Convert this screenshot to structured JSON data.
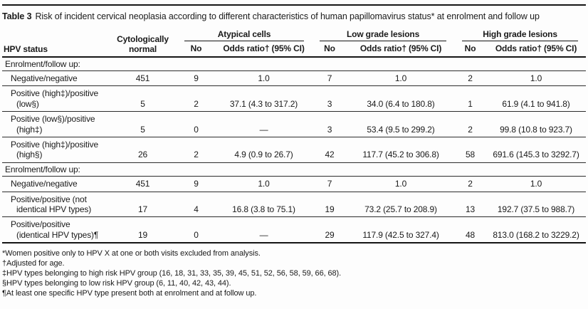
{
  "title": {
    "label": "Table 3",
    "text": "Risk of incident cervical neoplasia according to different characteristics of human papillomavirus status* at enrolment and follow up"
  },
  "header": {
    "hpv_status": "HPV status",
    "cytologically_normal": "Cytologically\nnormal",
    "groups": [
      {
        "label": "Atypical cells",
        "no": "No",
        "odds": "Odds ratio† (95% CI)"
      },
      {
        "label": "Low grade lesions",
        "no": "No",
        "odds": "Odds ratio† (95% CI)"
      },
      {
        "label": "High grade lesions",
        "no": "No",
        "odds": "Odds ratio† (95% CI)"
      }
    ]
  },
  "sections": [
    {
      "header": "Enrolment/follow up:",
      "rows": [
        {
          "label": "Negative/negative",
          "values": [
            "451",
            "9",
            "1.0",
            "7",
            "1.0",
            "2",
            "1.0"
          ]
        },
        {
          "label": "Positive (high‡)/positive\n(low§)",
          "values": [
            "5",
            "2",
            "37.1 (4.3 to 317.2)",
            "3",
            "34.0 (6.4 to 180.8)",
            "1",
            "61.9 (4.1 to 941.8)"
          ]
        },
        {
          "label": "Positive (low§)/positive\n(high‡)",
          "values": [
            "5",
            "0",
            "—",
            "3",
            "53.4 (9.5 to 299.2)",
            "2",
            "99.8 (10.8 to 923.7)"
          ]
        },
        {
          "label": "Positive (high‡)/positive\n(high§)",
          "values": [
            "26",
            "2",
            "4.9 (0.9 to 26.7)",
            "42",
            "117.7 (45.2 to 306.8)",
            "58",
            "691.6 (145.3 to 3292.7)"
          ]
        }
      ]
    },
    {
      "header": "Enrolment/follow up:",
      "rows": [
        {
          "label": "Negative/negative",
          "values": [
            "451",
            "9",
            "1.0",
            "7",
            "1.0",
            "2",
            "1.0"
          ]
        },
        {
          "label": "Positive/positive (not\nidentical HPV types)",
          "values": [
            "17",
            "4",
            "16.8 (3.8 to 75.1)",
            "19",
            "73.2 (25.7 to 208.9)",
            "13",
            "192.7 (37.5 to 988.7)"
          ]
        },
        {
          "label": "Positive/positive\n(identical HPV types)¶",
          "values": [
            "19",
            "0",
            "—",
            "29",
            "117.9 (42.5 to 327.4)",
            "48",
            "813.0 (168.2 to 3229.2)"
          ]
        }
      ]
    }
  ],
  "footnotes": [
    "*Women positive only to HPV X at one or both visits excluded from analysis.",
    "†Adjusted for age.",
    "‡HPV types belonging to high risk HPV group (16, 18, 31, 33, 35, 39, 45, 51, 52, 56, 58, 59, 66, 68).",
    "§HPV types belonging to low risk HPV group (6, 11, 40, 42, 43, 44).",
    "¶At least one specific HPV type present both at enrolment and at follow up."
  ]
}
